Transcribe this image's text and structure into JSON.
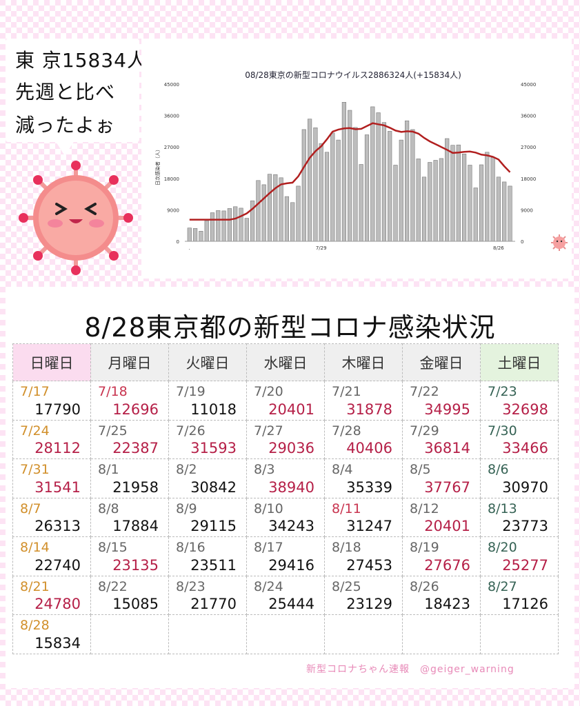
{
  "bubble": {
    "line1": "東 京15834人",
    "line2": "先週と比べ",
    "line3": "減ったよぉ"
  },
  "chart_data": {
    "type": "bar",
    "title": "08/28東京の新型コロナウイルス2886324人(+15834人)",
    "ylabel": "日次感染者（人）",
    "ylim": [
      0,
      45000
    ],
    "yticks": [
      "45000",
      "36000",
      "27000",
      "18000",
      "9000",
      "0"
    ],
    "xtick_labels": [
      "7/29",
      "8/26"
    ],
    "x_start_label": ".",
    "grid": false,
    "bar_color": "#bdbdbd",
    "line_color": "#b11f1f",
    "series": [
      {
        "values": [
          3800,
          3700,
          2900,
          5900,
          8200,
          8800,
          8700,
          9400,
          9900,
          9500,
          6600,
          11600,
          17400,
          16200,
          19200,
          19100,
          18200,
          12800,
          11100,
          15800,
          32000,
          35000,
          32500,
          28000,
          25500,
          31000,
          29000,
          39800,
          37500,
          32600,
          22000,
          30500,
          38500,
          36800,
          34000,
          31500,
          21800,
          29000,
          34500,
          32000,
          23600,
          18400,
          22600,
          23200,
          23700,
          29400,
          27500,
          27600,
          25000,
          21800,
          15300,
          21900,
          25500,
          24000,
          18400,
          17000,
          15800
        ]
      },
      {
        "values": [
          6200,
          6200,
          6200,
          6200,
          6200,
          6200,
          6200,
          6200,
          6500,
          7200,
          8000,
          9300,
          10800,
          12300,
          13800,
          15200,
          16300,
          16600,
          16800,
          18600,
          21300,
          23900,
          25800,
          27200,
          29200,
          31400,
          32000,
          32300,
          32400,
          32100,
          32200,
          33000,
          33800,
          33500,
          33200,
          32500,
          31700,
          31300,
          31500,
          31400,
          30800,
          29600,
          28600,
          27800,
          27000,
          26200,
          25300,
          25400,
          25600,
          25700,
          25400,
          24800,
          24600,
          24200,
          23400,
          21500,
          19800
        ]
      }
    ]
  },
  "table": {
    "title": "8/28東京都の新型コロナ感染状況",
    "headers": [
      "日曜日",
      "月曜日",
      "火曜日",
      "水曜日",
      "木曜日",
      "金曜日",
      "土曜日"
    ],
    "rows": [
      [
        {
          "date": "7/17",
          "value": "17790"
        },
        {
          "date": "7/18",
          "value": "12696"
        },
        {
          "date": "7/19",
          "value": "11018"
        },
        {
          "date": "7/20",
          "value": "20401"
        },
        {
          "date": "7/21",
          "value": "31878"
        },
        {
          "date": "7/22",
          "value": "34995"
        },
        {
          "date": "7/23",
          "value": "32698"
        }
      ],
      [
        {
          "date": "7/24",
          "value": "28112"
        },
        {
          "date": "7/25",
          "value": "22387"
        },
        {
          "date": "7/26",
          "value": "31593"
        },
        {
          "date": "7/27",
          "value": "29036"
        },
        {
          "date": "7/28",
          "value": "40406"
        },
        {
          "date": "7/29",
          "value": "36814"
        },
        {
          "date": "7/30",
          "value": "33466"
        }
      ],
      [
        {
          "date": "7/31",
          "value": "31541"
        },
        {
          "date": "8/1",
          "value": "21958"
        },
        {
          "date": "8/2",
          "value": "30842"
        },
        {
          "date": "8/3",
          "value": "38940"
        },
        {
          "date": "8/4",
          "value": "35339"
        },
        {
          "date": "8/5",
          "value": "37767"
        },
        {
          "date": "8/6",
          "value": "30970"
        }
      ],
      [
        {
          "date": "8/7",
          "value": "26313"
        },
        {
          "date": "8/8",
          "value": "17884"
        },
        {
          "date": "8/9",
          "value": "29115"
        },
        {
          "date": "8/10",
          "value": "34243"
        },
        {
          "date": "8/11",
          "value": "31247"
        },
        {
          "date": "8/12",
          "value": "20401"
        },
        {
          "date": "8/13",
          "value": "23773"
        }
      ],
      [
        {
          "date": "8/14",
          "value": "22740"
        },
        {
          "date": "8/15",
          "value": "23135"
        },
        {
          "date": "8/16",
          "value": "23511"
        },
        {
          "date": "8/17",
          "value": "29416"
        },
        {
          "date": "8/18",
          "value": "27453"
        },
        {
          "date": "8/19",
          "value": "27676"
        },
        {
          "date": "8/20",
          "value": "25277"
        }
      ],
      [
        {
          "date": "8/21",
          "value": "24780"
        },
        {
          "date": "8/22",
          "value": "15085"
        },
        {
          "date": "8/23",
          "value": "21770"
        },
        {
          "date": "8/24",
          "value": "25444"
        },
        {
          "date": "8/25",
          "value": "23129"
        },
        {
          "date": "8/26",
          "value": "18423"
        },
        {
          "date": "8/27",
          "value": "17126"
        }
      ],
      [
        {
          "date": "8/28",
          "value": "15834"
        },
        {
          "date": "",
          "value": ""
        },
        {
          "date": "",
          "value": ""
        },
        {
          "date": "",
          "value": ""
        },
        {
          "date": "",
          "value": ""
        },
        {
          "date": "",
          "value": ""
        },
        {
          "date": "",
          "value": ""
        }
      ]
    ],
    "holiday_dates": [
      "7/18",
      "8/11"
    ],
    "increase_values": [
      "12696",
      "20401",
      "31878",
      "34995",
      "32698",
      "28112",
      "22387",
      "31593",
      "29036",
      "40406",
      "36814",
      "33466",
      "31541",
      "38940",
      "37767",
      "23135",
      "27676",
      "25277",
      "24780"
    ],
    "colors": {
      "sunday_date": "#d18f2a",
      "saturday_date": "#356254",
      "holiday_date": "#c8344f",
      "increase_value": "#b51f47",
      "normal_value": "#111111"
    }
  },
  "credit": "新型コロナちゃん速報　@geiger_warning",
  "icons": {
    "mascot": "corona-mascot-icon",
    "small_mascot": "small-corona-icon"
  }
}
